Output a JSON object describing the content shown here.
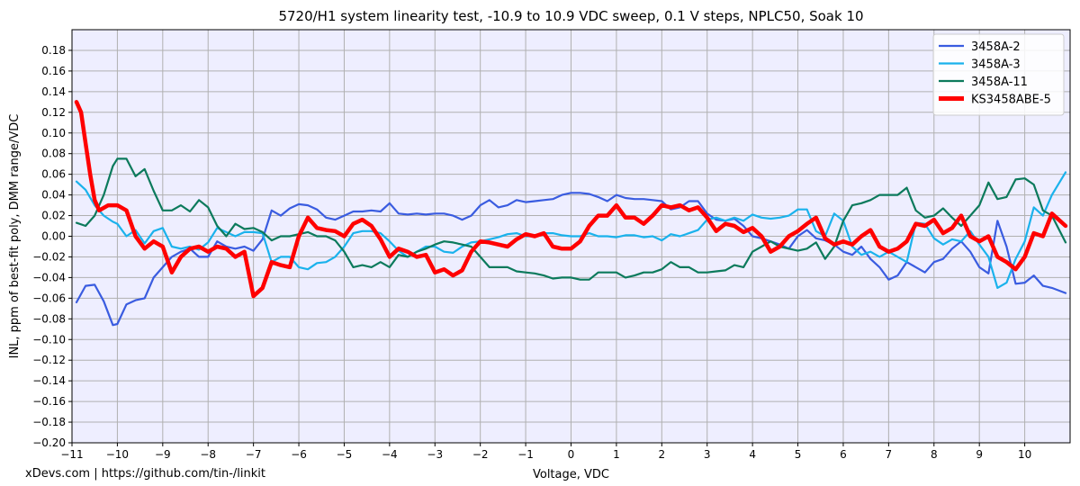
{
  "chart_data": {
    "type": "line",
    "title": "5720/H1 system linearity test, -10.9 to 10.9 VDC sweep, 0.1 V steps, NPLC50, Soak 10",
    "xlabel": "Voltage, VDC",
    "ylabel": "INL, ppm of best-fit poly, DMM range/VDC",
    "xlim": [
      -11,
      11
    ],
    "ylim": [
      -0.2,
      0.2
    ],
    "xticks": [
      -11,
      -10,
      -9,
      -8,
      -7,
      -6,
      -5,
      -4,
      -3,
      -2,
      -1,
      0,
      1,
      2,
      3,
      4,
      5,
      6,
      7,
      8,
      9,
      10
    ],
    "yticks": [
      -0.2,
      -0.18,
      -0.16,
      -0.14,
      -0.12,
      -0.1,
      -0.08,
      -0.06,
      -0.04,
      -0.02,
      0.0,
      0.02,
      0.04,
      0.06,
      0.08,
      0.1,
      0.12,
      0.14,
      0.16,
      0.18
    ],
    "ytick_labels": [
      "−0.20",
      "−0.18",
      "−0.16",
      "−0.14",
      "−0.12",
      "−0.10",
      "−0.08",
      "−0.06",
      "−0.04",
      "−0.02",
      "0.00",
      "0.02",
      "0.04",
      "0.06",
      "0.08",
      "0.10",
      "0.12",
      "0.14",
      "0.16",
      "0.18"
    ],
    "xtick_labels": [
      "−11",
      "−10",
      "−9",
      "−8",
      "−7",
      "−6",
      "−5",
      "−4",
      "−3",
      "−2",
      "−1",
      "0",
      "1",
      "2",
      "3",
      "4",
      "5",
      "6",
      "7",
      "8",
      "9",
      "10"
    ],
    "grid": true,
    "legend_position": "top-right",
    "background_color": "#eeeeff",
    "series": [
      {
        "name": "3458A-2",
        "color": "#3a5ce0",
        "x": [
          -10.9,
          -10.7,
          -10.5,
          -10.3,
          -10.1,
          -10.0,
          -9.8,
          -9.6,
          -9.4,
          -9.2,
          -9.0,
          -8.8,
          -8.6,
          -8.4,
          -8.2,
          -8.0,
          -7.8,
          -7.6,
          -7.4,
          -7.2,
          -7.0,
          -6.8,
          -6.6,
          -6.4,
          -6.2,
          -6.0,
          -5.8,
          -5.6,
          -5.4,
          -5.2,
          -5.0,
          -4.8,
          -4.6,
          -4.4,
          -4.2,
          -4.0,
          -3.8,
          -3.6,
          -3.4,
          -3.2,
          -3.0,
          -2.8,
          -2.6,
          -2.4,
          -2.2,
          -2.0,
          -1.8,
          -1.6,
          -1.4,
          -1.2,
          -1.0,
          -0.8,
          -0.6,
          -0.4,
          -0.2,
          0.0,
          0.2,
          0.4,
          0.6,
          0.8,
          1.0,
          1.2,
          1.4,
          1.6,
          1.8,
          2.0,
          2.2,
          2.4,
          2.6,
          2.8,
          3.0,
          3.2,
          3.4,
          3.6,
          3.8,
          4.0,
          4.2,
          4.4,
          4.6,
          4.8,
          5.0,
          5.2,
          5.4,
          5.6,
          5.8,
          6.0,
          6.2,
          6.4,
          6.6,
          6.8,
          7.0,
          7.2,
          7.4,
          7.6,
          7.8,
          8.0,
          8.2,
          8.4,
          8.6,
          8.8,
          9.0,
          9.2,
          9.4,
          9.6,
          9.8,
          10.0,
          10.2,
          10.4,
          10.6,
          10.9
        ],
        "values": [
          -0.064,
          -0.048,
          -0.047,
          -0.063,
          -0.086,
          -0.085,
          -0.066,
          -0.062,
          -0.06,
          -0.04,
          -0.03,
          -0.02,
          -0.015,
          -0.012,
          -0.02,
          -0.02,
          -0.005,
          -0.01,
          -0.012,
          -0.01,
          -0.014,
          -0.003,
          0.025,
          0.02,
          0.027,
          0.031,
          0.03,
          0.026,
          0.018,
          0.016,
          0.02,
          0.024,
          0.024,
          0.025,
          0.024,
          0.032,
          0.022,
          0.021,
          0.022,
          0.021,
          0.022,
          0.022,
          0.02,
          0.016,
          0.02,
          0.03,
          0.035,
          0.028,
          0.03,
          0.035,
          0.033,
          0.034,
          0.035,
          0.036,
          0.04,
          0.042,
          0.042,
          0.041,
          0.038,
          0.034,
          0.04,
          0.037,
          0.036,
          0.036,
          0.035,
          0.034,
          0.026,
          0.028,
          0.034,
          0.034,
          0.022,
          0.016,
          0.015,
          0.017,
          0.01,
          0.0,
          -0.002,
          -0.005,
          -0.008,
          -0.012,
          0.0,
          0.006,
          -0.002,
          -0.004,
          -0.008,
          -0.015,
          -0.018,
          -0.01,
          -0.022,
          -0.03,
          -0.042,
          -0.038,
          -0.025,
          -0.03,
          -0.035,
          -0.025,
          -0.022,
          -0.012,
          -0.005,
          -0.015,
          -0.03,
          -0.036,
          0.015,
          -0.01,
          -0.046,
          -0.045,
          -0.038,
          -0.048,
          -0.05,
          -0.055
        ]
      },
      {
        "name": "3458A-3",
        "color": "#1ab2ec",
        "x": [
          -10.9,
          -10.7,
          -10.5,
          -10.3,
          -10.1,
          -10.0,
          -9.8,
          -9.6,
          -9.4,
          -9.2,
          -9.0,
          -8.8,
          -8.6,
          -8.4,
          -8.2,
          -8.0,
          -7.8,
          -7.6,
          -7.4,
          -7.2,
          -7.0,
          -6.8,
          -6.6,
          -6.4,
          -6.2,
          -6.0,
          -5.8,
          -5.6,
          -5.4,
          -5.2,
          -5.0,
          -4.8,
          -4.6,
          -4.4,
          -4.2,
          -4.0,
          -3.8,
          -3.6,
          -3.4,
          -3.2,
          -3.0,
          -2.8,
          -2.6,
          -2.4,
          -2.2,
          -2.0,
          -1.8,
          -1.6,
          -1.4,
          -1.2,
          -1.0,
          -0.8,
          -0.6,
          -0.4,
          -0.2,
          0.0,
          0.2,
          0.4,
          0.6,
          0.8,
          1.0,
          1.2,
          1.4,
          1.6,
          1.8,
          2.0,
          2.2,
          2.4,
          2.6,
          2.8,
          3.0,
          3.2,
          3.4,
          3.6,
          3.8,
          4.0,
          4.2,
          4.4,
          4.6,
          4.8,
          5.0,
          5.2,
          5.4,
          5.6,
          5.8,
          6.0,
          6.2,
          6.4,
          6.6,
          6.8,
          7.0,
          7.2,
          7.4,
          7.6,
          7.8,
          8.0,
          8.2,
          8.4,
          8.6,
          8.8,
          9.0,
          9.2,
          9.4,
          9.6,
          9.8,
          10.0,
          10.2,
          10.4,
          10.6,
          10.9
        ],
        "values": [
          0.053,
          0.045,
          0.03,
          0.02,
          0.014,
          0.012,
          0.0,
          0.006,
          -0.007,
          0.005,
          0.008,
          -0.01,
          -0.012,
          -0.01,
          -0.013,
          -0.006,
          0.008,
          0.004,
          0.0,
          0.004,
          0.004,
          0.003,
          -0.025,
          -0.02,
          -0.02,
          -0.03,
          -0.032,
          -0.026,
          -0.025,
          -0.02,
          -0.01,
          0.003,
          0.005,
          0.005,
          0.003,
          -0.005,
          -0.014,
          -0.02,
          -0.015,
          -0.01,
          -0.01,
          -0.015,
          -0.016,
          -0.01,
          -0.006,
          -0.005,
          -0.003,
          -0.001,
          0.002,
          0.003,
          0.0,
          0.0,
          0.003,
          0.003,
          0.001,
          0.0,
          0.0,
          0.003,
          0.0,
          0.0,
          -0.001,
          0.001,
          0.001,
          -0.001,
          0.0,
          -0.004,
          0.002,
          0.0,
          0.003,
          0.006,
          0.016,
          0.018,
          0.015,
          0.018,
          0.015,
          0.021,
          0.018,
          0.017,
          0.018,
          0.02,
          0.026,
          0.026,
          0.005,
          0.0,
          0.022,
          0.015,
          -0.01,
          -0.018,
          -0.015,
          -0.02,
          -0.015,
          -0.02,
          -0.025,
          0.013,
          0.012,
          -0.002,
          -0.008,
          -0.003,
          -0.005,
          0.005,
          -0.008,
          -0.02,
          -0.05,
          -0.045,
          -0.022,
          -0.005,
          0.028,
          0.02,
          0.04,
          0.062
        ]
      },
      {
        "name": "3458A-11",
        "color": "#0c7a5c",
        "x": [
          -10.9,
          -10.7,
          -10.5,
          -10.3,
          -10.1,
          -10.0,
          -9.8,
          -9.6,
          -9.4,
          -9.2,
          -9.0,
          -8.8,
          -8.6,
          -8.4,
          -8.2,
          -8.0,
          -7.8,
          -7.6,
          -7.4,
          -7.2,
          -7.0,
          -6.8,
          -6.6,
          -6.4,
          -6.2,
          -6.0,
          -5.8,
          -5.6,
          -5.4,
          -5.2,
          -5.0,
          -4.8,
          -4.6,
          -4.4,
          -4.2,
          -4.0,
          -3.8,
          -3.6,
          -3.4,
          -3.2,
          -3.0,
          -2.8,
          -2.6,
          -2.4,
          -2.2,
          -2.0,
          -1.8,
          -1.6,
          -1.4,
          -1.2,
          -1.0,
          -0.8,
          -0.6,
          -0.4,
          -0.2,
          0.0,
          0.2,
          0.4,
          0.6,
          0.8,
          1.0,
          1.2,
          1.4,
          1.6,
          1.8,
          2.0,
          2.2,
          2.4,
          2.6,
          2.8,
          3.0,
          3.2,
          3.4,
          3.6,
          3.8,
          4.0,
          4.2,
          4.4,
          4.6,
          4.8,
          5.0,
          5.2,
          5.4,
          5.6,
          5.8,
          6.0,
          6.2,
          6.4,
          6.6,
          6.8,
          7.0,
          7.2,
          7.4,
          7.6,
          7.8,
          8.0,
          8.2,
          8.4,
          8.6,
          8.8,
          9.0,
          9.2,
          9.4,
          9.6,
          9.8,
          10.0,
          10.2,
          10.4,
          10.6,
          10.9
        ],
        "values": [
          0.013,
          0.01,
          0.02,
          0.04,
          0.068,
          0.075,
          0.075,
          0.058,
          0.065,
          0.044,
          0.025,
          0.025,
          0.03,
          0.024,
          0.035,
          0.028,
          0.01,
          0.0,
          0.012,
          0.007,
          0.008,
          0.004,
          -0.004,
          0.0,
          0.0,
          0.002,
          0.004,
          0.0,
          0.0,
          -0.004,
          -0.015,
          -0.03,
          -0.028,
          -0.03,
          -0.025,
          -0.03,
          -0.018,
          -0.02,
          -0.015,
          -0.012,
          -0.008,
          -0.005,
          -0.006,
          -0.008,
          -0.01,
          -0.02,
          -0.03,
          -0.03,
          -0.03,
          -0.034,
          -0.035,
          -0.036,
          -0.038,
          -0.041,
          -0.04,
          -0.04,
          -0.042,
          -0.042,
          -0.035,
          -0.035,
          -0.035,
          -0.04,
          -0.038,
          -0.035,
          -0.035,
          -0.032,
          -0.025,
          -0.03,
          -0.03,
          -0.035,
          -0.035,
          -0.034,
          -0.033,
          -0.028,
          -0.03,
          -0.015,
          -0.01,
          -0.005,
          -0.01,
          -0.012,
          -0.014,
          -0.012,
          -0.006,
          -0.022,
          -0.01,
          0.015,
          0.03,
          0.032,
          0.035,
          0.04,
          0.04,
          0.04,
          0.047,
          0.025,
          0.018,
          0.02,
          0.027,
          0.018,
          0.01,
          0.02,
          0.03,
          0.052,
          0.036,
          0.038,
          0.055,
          0.056,
          0.05,
          0.025,
          0.02,
          -0.006
        ]
      },
      {
        "name": "KS3458ABE-5",
        "color": "#ff0000",
        "x": [
          -10.9,
          -10.8,
          -10.7,
          -10.6,
          -10.5,
          -10.4,
          -10.2,
          -10.0,
          -9.8,
          -9.6,
          -9.4,
          -9.2,
          -9.0,
          -8.8,
          -8.6,
          -8.4,
          -8.2,
          -8.0,
          -7.8,
          -7.6,
          -7.4,
          -7.2,
          -7.0,
          -6.8,
          -6.6,
          -6.4,
          -6.2,
          -6.0,
          -5.8,
          -5.6,
          -5.4,
          -5.2,
          -5.0,
          -4.8,
          -4.6,
          -4.4,
          -4.2,
          -4.0,
          -3.8,
          -3.6,
          -3.4,
          -3.2,
          -3.0,
          -2.8,
          -2.6,
          -2.4,
          -2.2,
          -2.0,
          -1.8,
          -1.6,
          -1.4,
          -1.2,
          -1.0,
          -0.8,
          -0.6,
          -0.4,
          -0.2,
          0.0,
          0.2,
          0.4,
          0.6,
          0.8,
          1.0,
          1.2,
          1.4,
          1.6,
          1.8,
          2.0,
          2.2,
          2.4,
          2.6,
          2.8,
          3.0,
          3.2,
          3.4,
          3.6,
          3.8,
          4.0,
          4.2,
          4.4,
          4.6,
          4.8,
          5.0,
          5.2,
          5.4,
          5.6,
          5.8,
          6.0,
          6.2,
          6.4,
          6.6,
          6.8,
          7.0,
          7.2,
          7.4,
          7.6,
          7.8,
          8.0,
          8.2,
          8.4,
          8.6,
          8.8,
          9.0,
          9.2,
          9.4,
          9.6,
          9.8,
          10.0,
          10.2,
          10.4,
          10.6,
          10.9
        ],
        "values": [
          0.13,
          0.12,
          0.09,
          0.06,
          0.035,
          0.025,
          0.03,
          0.03,
          0.025,
          0.0,
          -0.012,
          -0.005,
          -0.01,
          -0.035,
          -0.02,
          -0.012,
          -0.01,
          -0.015,
          -0.01,
          -0.012,
          -0.02,
          -0.015,
          -0.058,
          -0.05,
          -0.025,
          -0.028,
          -0.03,
          0.0,
          0.018,
          0.008,
          0.006,
          0.005,
          0.0,
          0.012,
          0.016,
          0.01,
          -0.003,
          -0.02,
          -0.012,
          -0.015,
          -0.02,
          -0.018,
          -0.035,
          -0.032,
          -0.038,
          -0.033,
          -0.015,
          -0.005,
          -0.006,
          -0.008,
          -0.01,
          -0.003,
          0.002,
          0.0,
          0.003,
          -0.01,
          -0.012,
          -0.012,
          -0.005,
          0.01,
          0.02,
          0.02,
          0.03,
          0.018,
          0.018,
          0.012,
          0.02,
          0.03,
          0.028,
          0.03,
          0.025,
          0.028,
          0.018,
          0.005,
          0.012,
          0.01,
          0.004,
          0.008,
          0.0,
          -0.015,
          -0.01,
          0.0,
          0.005,
          0.012,
          0.018,
          -0.002,
          -0.008,
          -0.005,
          -0.008,
          0.0,
          0.006,
          -0.01,
          -0.015,
          -0.012,
          -0.005,
          0.012,
          0.01,
          0.016,
          0.003,
          0.008,
          0.02,
          0.0,
          -0.005,
          0.0,
          -0.02,
          -0.025,
          -0.032,
          -0.02,
          0.003,
          0.0,
          0.022,
          0.01
        ]
      }
    ]
  },
  "footer": {
    "credit": "xDevs.com | https://github.com/tin-/linkit"
  }
}
